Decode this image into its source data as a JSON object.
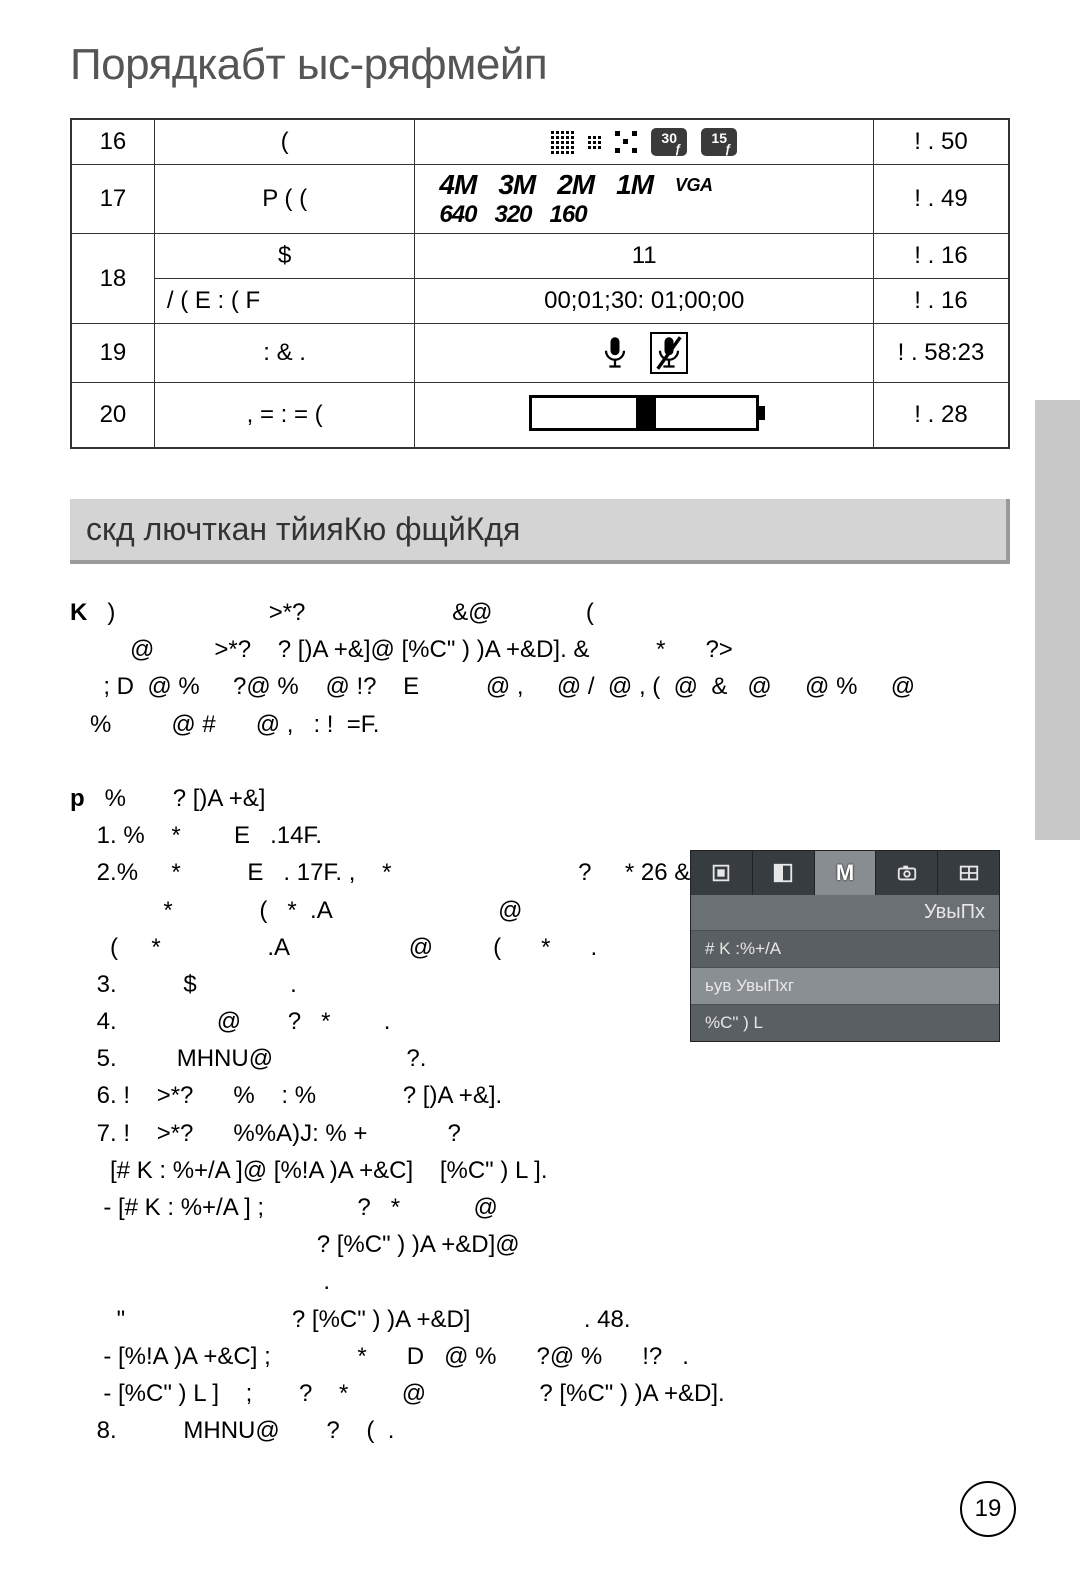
{
  "title": "Порядкабт ыс-ряфмейп",
  "table": {
    "rows": [
      {
        "num": "16",
        "label": "(",
        "ref": "! .  50"
      },
      {
        "num": "17",
        "label": "P (    (",
        "ref": "! .  49",
        "mp": [
          "4M",
          "3M",
          "2M",
          "1M"
        ],
        "vga": "VGA",
        "sub": [
          "640",
          "320",
          "160"
        ]
      },
      {
        "num": "18",
        "label_a": "$",
        "val_a": "11",
        "ref_a": "! .  16",
        "label_b": "/          (     E    : (   F",
        "val_b": "00;01;30: 01;00;00",
        "ref_b": "! .  16"
      },
      {
        "num": "19",
        "label": ": &       .",
        "ref": "! .  58:23"
      },
      {
        "num": "20",
        "label": ",          = :      = (",
        "ref": "! .  28"
      }
    ],
    "frame_badges": [
      "30",
      "15"
    ]
  },
  "subtitle": "скд лючткан тйияКю фщйКдя",
  "body": "K   )                       >*?                      &@              (\n         @         >*?    ? [)A +&]@ [%C\" ) )A +&D]. &          *      ?>\n     ; D  @ %     ?@ %    @ !?    E          @ ,     @ /  @ , (  @  &   @     @ %     @\n   %         @ #      @ ,   : !  =F.\n\np   %       ? [)A +&]\n    1. %    *        E   .14F.\n    2.%     *          E   . 17F. ,    *                            ?     * 26 & @\n              *             (   *  .A                         @\n      (     *                .A                  @         (      *      .\n    3.          $              .\n    4.               @       ?   *        .\n    5.         MHNU@                    ?.\n    6. !    >*?      %    : %             ? [)A +&].\n    7. !    >*?      %%A)J: % +            ?\n      [# K : %+/A ]@ [%!A )A +&C]    [%C\" ) L ].\n     - [# K : %+/A ] ;              ?   *           @\n                                     ? [%C\" ) )A +&D]@\n                                      .\n       \"                         ? [%C\" ) )A +&D]                 . 48.\n     - [%!A )A +&C] ;             *      D   @ %      ?@ %      !?   .\n     - [%C\" ) L ]    ;       ?    *        @                 ? [%C\" ) )A +&D].\n    8.          MHNU@       ?    (  .",
  "body_bold_prefixes": [
    "K",
    "p"
  ],
  "camera_menu": {
    "heading": "УвыПх",
    "items": [
      {
        "text": "# K :%+/A",
        "selected": false
      },
      {
        "text": "ьув УвыПхг",
        "selected": true
      },
      {
        "text": "%C\" ) L",
        "selected": false
      }
    ]
  },
  "page_number": "19",
  "colors": {
    "side_tab": "#c8c8c8",
    "subtitle_bg": "#d4d4d4",
    "subtitle_shadow": "#9a9a9a",
    "menu_bg": "#5a5f63",
    "menu_dark": "#373c40",
    "menu_item_sel": "#8a8f93"
  }
}
